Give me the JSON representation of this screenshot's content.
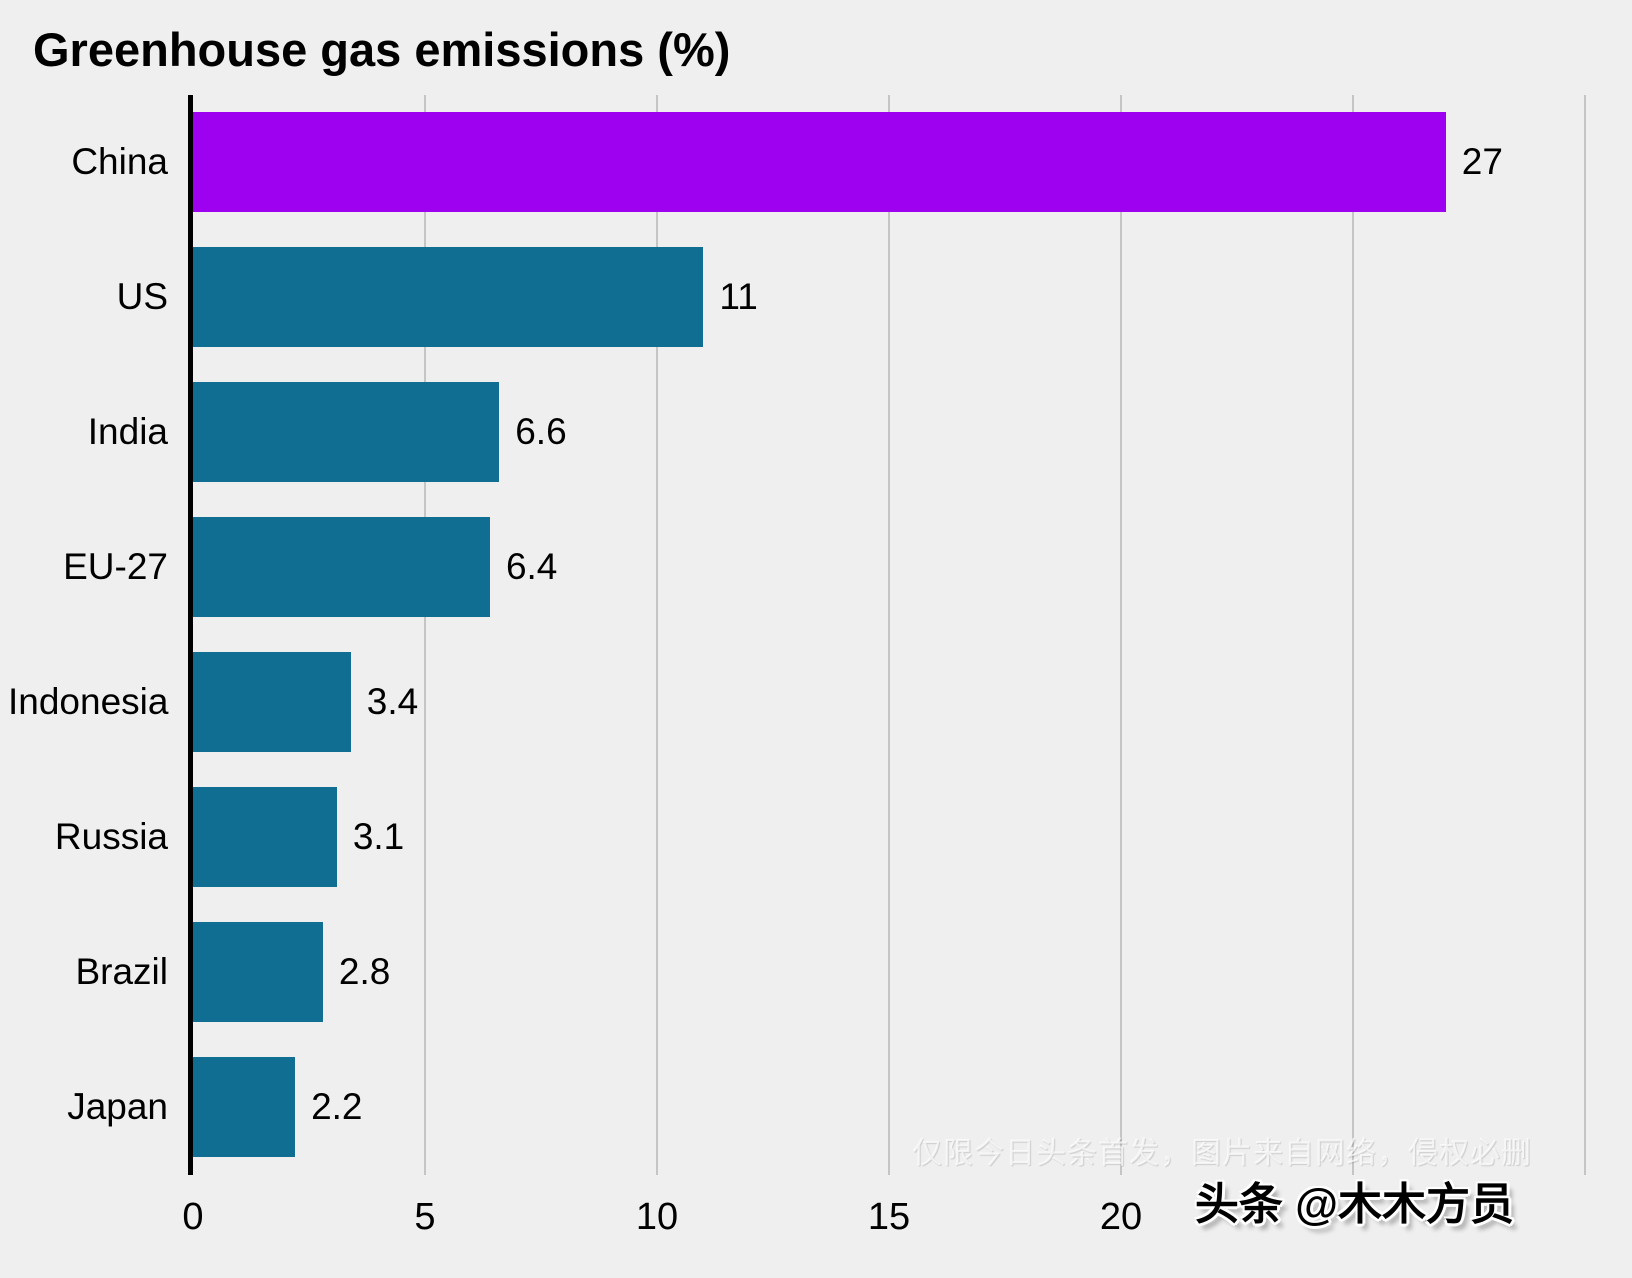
{
  "title": "Greenhouse gas emissions (%)",
  "colors": {
    "background": "#efefef",
    "bar": "#0f6e91",
    "highlight_bar": "#9e00f0",
    "gridline": "#c5c5c5",
    "axis": "#000000",
    "text": "#000000"
  },
  "chart_data": {
    "type": "bar",
    "orientation": "horizontal",
    "title": "Greenhouse gas emissions (%)",
    "categories": [
      "China",
      "US",
      "India",
      "EU-27",
      "Indonesia",
      "Russia",
      "Brazil",
      "Japan"
    ],
    "values": [
      27,
      11,
      6.6,
      6.4,
      3.4,
      3.1,
      2.8,
      2.2
    ],
    "value_labels": [
      "27",
      "11",
      "6.6",
      "6.4",
      "3.4",
      "3.1",
      "2.8",
      "2.2"
    ],
    "highlight_index": 0,
    "xlim": [
      0,
      30
    ],
    "gridline_values": [
      5,
      10,
      15,
      20,
      25,
      30
    ],
    "x_ticks": [
      {
        "value": 0,
        "label": "0"
      },
      {
        "value": 5,
        "label": "5"
      },
      {
        "value": 10,
        "label": "10"
      },
      {
        "value": 15,
        "label": "15"
      },
      {
        "value": 20,
        "label": "20"
      }
    ],
    "grid": "vertical",
    "legend": "none"
  },
  "watermarks": {
    "faint_notice": "仅限今日头条首发，图片来自网络，侵权必删",
    "byline": "头条 @木木方员"
  }
}
